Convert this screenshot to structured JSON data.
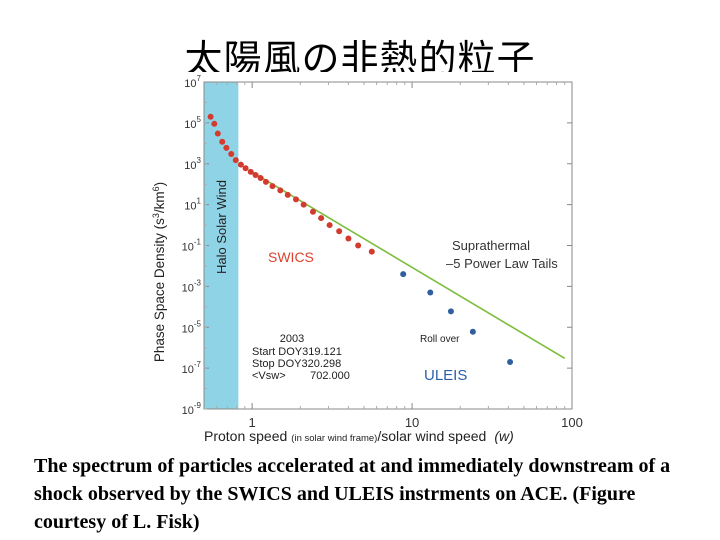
{
  "page": {
    "title": "太陽風の非熱的粒子",
    "caption": "The spectrum of particles accelerated at and immediately downstream of a shock observed by the SWICS and ULEIS instrments on ACE. (Figure courtesy of L. Fisk)"
  },
  "chart_data": {
    "type": "scatter",
    "x_scale": "log",
    "y_scale": "log",
    "xlim": [
      0.5,
      100
    ],
    "ylim": [
      1e-09,
      10000000.0
    ],
    "x_ticks": [
      {
        "value": 1,
        "label": "1"
      },
      {
        "value": 10,
        "label": "10"
      },
      {
        "value": 100,
        "label": "100"
      }
    ],
    "y_ticks": [
      {
        "value": 10000000.0,
        "base": "10",
        "exp": "7"
      },
      {
        "value": 100000.0,
        "base": "10",
        "exp": "5"
      },
      {
        "value": 1000.0,
        "base": "10",
        "exp": "3"
      },
      {
        "value": 10.0,
        "base": "10",
        "exp": "1"
      },
      {
        "value": 0.1,
        "base": "10",
        "exp": "-1"
      },
      {
        "value": 0.001,
        "base": "10",
        "exp": "-3"
      },
      {
        "value": 1e-05,
        "base": "10",
        "exp": "-5"
      },
      {
        "value": 1e-07,
        "base": "10",
        "exp": "-7"
      },
      {
        "value": 1e-09,
        "base": "10",
        "exp": "-9"
      }
    ],
    "xlabel": {
      "main": "Proton speed",
      "small": "(in solar wind frame)",
      "rest": "/solar wind speed",
      "italic": "(w)"
    },
    "ylabel": {
      "main": "Phase Space Density (s",
      "sup1": "3",
      "mid": "/km",
      "sup2": "6",
      "end": ")"
    },
    "shaded_band": {
      "x_range": [
        0.5,
        0.82
      ],
      "label": "Halo Solar Wind",
      "color": "#8fd3e6"
    },
    "series": [
      {
        "name": "SWICS",
        "color": "#d23b2e",
        "points": [
          [
            0.55,
            200000
          ],
          [
            0.58,
            90000
          ],
          [
            0.61,
            30000
          ],
          [
            0.65,
            12000
          ],
          [
            0.69,
            6000
          ],
          [
            0.74,
            3000
          ],
          [
            0.79,
            1500
          ],
          [
            0.85,
            900
          ],
          [
            0.91,
            600
          ],
          [
            0.98,
            400
          ],
          [
            1.05,
            280
          ],
          [
            1.13,
            200
          ],
          [
            1.22,
            130
          ],
          [
            1.34,
            80
          ],
          [
            1.5,
            50
          ],
          [
            1.67,
            30
          ],
          [
            1.88,
            18
          ],
          [
            2.1,
            10
          ],
          [
            2.4,
            4.5
          ],
          [
            2.7,
            2.2
          ],
          [
            3.05,
            1.0
          ],
          [
            3.5,
            0.5
          ],
          [
            4.0,
            0.22
          ],
          [
            4.6,
            0.1
          ],
          [
            5.6,
            0.05
          ]
        ]
      },
      {
        "name": "ULEIS",
        "color": "#2f5f9e",
        "points": [
          [
            8.8,
            0.004
          ],
          [
            13,
            0.0005
          ],
          [
            17.5,
            6e-05
          ],
          [
            24,
            6e-06
          ],
          [
            41,
            2e-07
          ]
        ]
      }
    ],
    "fit_line": {
      "label": "–5 Power Law Tails",
      "color": "#7dbd3c",
      "from": [
        0.95,
        500
      ],
      "to": [
        90,
        3e-07
      ]
    },
    "annotations": {
      "swics_label": "SWICS",
      "uleis_label": "ULEIS",
      "suprathermal_line1": "Suprathermal",
      "suprathermal_line2": "–5 Power Law Tails",
      "rollover": "Roll over",
      "info": [
        "2003",
        "Start DOY319.121",
        "Stop DOY320.298",
        "<Vsw>        702.000"
      ]
    },
    "colors": {
      "swics": "#d23b2e",
      "uleis": "#2f5f9e",
      "fit": "#7dbd3c",
      "band": "#8fd3e6",
      "label_red": "#d9432f",
      "label_blue": "#2c5fa8"
    }
  }
}
